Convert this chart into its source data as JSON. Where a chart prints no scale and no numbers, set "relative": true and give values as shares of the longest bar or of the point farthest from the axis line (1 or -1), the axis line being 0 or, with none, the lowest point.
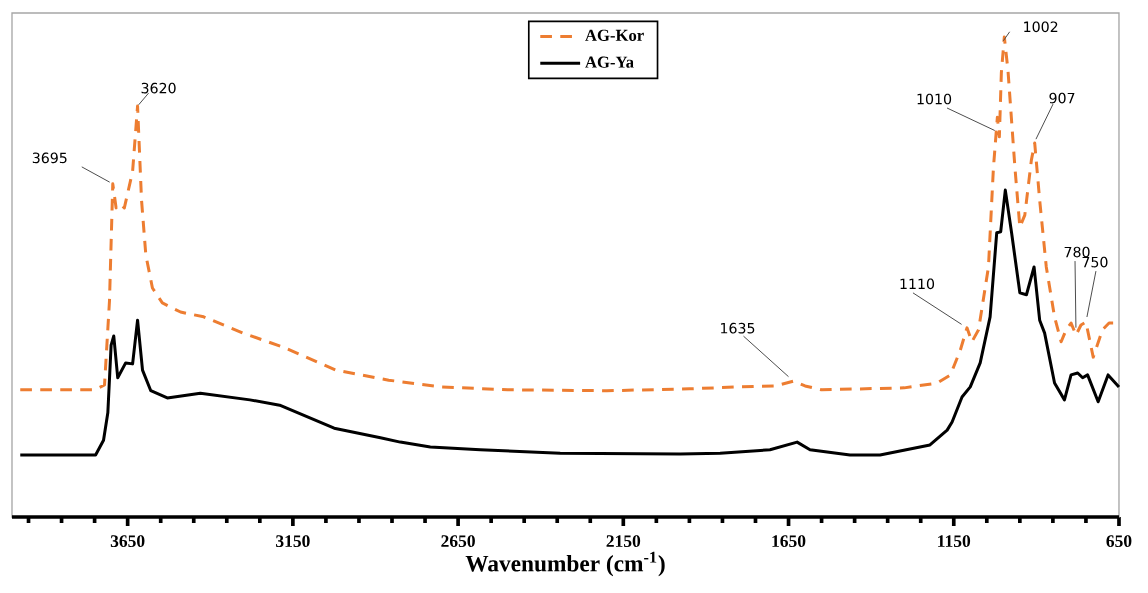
{
  "chart_data": {
    "type": "line",
    "relative": true,
    "xlabel": "Wavenumber (cm$^{-1}$)",
    "xlim": [
      4000,
      650
    ],
    "xticks": [
      {
        "value": 3950,
        "label": null
      },
      {
        "value": 3850,
        "label": null
      },
      {
        "value": 3750,
        "label": null
      },
      3650,
      {
        "value": 3550,
        "label": null
      },
      {
        "value": 3450,
        "label": null
      },
      {
        "value": 3350,
        "label": null
      },
      {
        "value": 3250,
        "label": null
      },
      3150,
      {
        "value": 3050,
        "label": null
      },
      {
        "value": 2950,
        "label": null
      },
      {
        "value": 2850,
        "label": null
      },
      {
        "value": 2750,
        "label": null
      },
      2650,
      {
        "value": 2550,
        "label": null
      },
      {
        "value": 2450,
        "label": null
      },
      {
        "value": 2350,
        "label": null
      },
      {
        "value": 2250,
        "label": null
      },
      2150,
      {
        "value": 2050,
        "label": null
      },
      {
        "value": 1950,
        "label": null
      },
      {
        "value": 1850,
        "label": null
      },
      {
        "value": 1750,
        "label": null
      },
      1650,
      {
        "value": 1550,
        "label": null
      },
      {
        "value": 1450,
        "label": null
      },
      {
        "value": 1350,
        "label": null
      },
      {
        "value": 1250,
        "label": null
      },
      1150,
      {
        "value": 1050,
        "label": null
      },
      {
        "value": 950,
        "label": null
      },
      {
        "value": 850,
        "label": null
      },
      {
        "value": 750,
        "label": null
      },
      650
    ],
    "legend": "top",
    "series": [
      {
        "name": "AG-Kor",
        "color": "#ed7d31",
        "line_style": "dashed",
        "x": [
          3975,
          3750,
          3720,
          3705,
          3695,
          3685,
          3672,
          3660,
          3635,
          3620,
          3608,
          3595,
          3575,
          3545,
          3490,
          3420,
          3300,
          3180,
          3020,
          2860,
          2700,
          2500,
          2200,
          1950,
          1800,
          1690,
          1635,
          1600,
          1550,
          1300,
          1200,
          1160,
          1130,
          1110,
          1095,
          1075,
          1045,
          1030,
          1018,
          1012,
          1006,
          997,
          986,
          965,
          950,
          935,
          915,
          905,
          890,
          870,
          845,
          825,
          810,
          795,
          780,
          765,
          750,
          728,
          700,
          680,
          650
        ],
        "values": [
          0.265,
          0.265,
          0.275,
          0.45,
          0.694,
          0.644,
          0.652,
          0.644,
          0.72,
          0.856,
          0.66,
          0.546,
          0.477,
          0.446,
          0.427,
          0.417,
          0.383,
          0.354,
          0.306,
          0.285,
          0.271,
          0.265,
          0.263,
          0.267,
          0.271,
          0.273,
          0.283,
          0.273,
          0.265,
          0.269,
          0.279,
          0.296,
          0.348,
          0.394,
          0.365,
          0.39,
          0.521,
          0.727,
          0.833,
          0.792,
          0.925,
          1.0,
          0.931,
          0.729,
          0.604,
          0.629,
          0.744,
          0.779,
          0.66,
          0.521,
          0.417,
          0.365,
          0.39,
          0.404,
          0.379,
          0.4,
          0.406,
          0.333,
          0.39,
          0.404,
          0.404
        ]
      },
      {
        "name": "AG-Ya",
        "color": "#000000",
        "line_style": "solid",
        "x": [
          3975,
          3747,
          3723,
          3710,
          3700,
          3692,
          3680,
          3656,
          3635,
          3620,
          3605,
          3580,
          3530,
          3430,
          3280,
          3190,
          3025,
          2885,
          2825,
          2734,
          2583,
          2341,
          1978,
          1857,
          1706,
          1624,
          1585,
          1464,
          1373,
          1222,
          1170,
          1155,
          1125,
          1100,
          1070,
          1040,
          1020,
          1008,
          994,
          975,
          950,
          930,
          907,
          890,
          875,
          845,
          815,
          795,
          775,
          760,
          745,
          713,
          683,
          650
        ],
        "values": [
          0.129,
          0.129,
          0.16,
          0.217,
          0.358,
          0.377,
          0.29,
          0.321,
          0.319,
          0.41,
          0.306,
          0.263,
          0.248,
          0.258,
          0.244,
          0.233,
          0.185,
          0.165,
          0.156,
          0.146,
          0.14,
          0.133,
          0.131,
          0.133,
          0.14,
          0.156,
          0.14,
          0.129,
          0.129,
          0.15,
          0.181,
          0.198,
          0.25,
          0.271,
          0.321,
          0.417,
          0.592,
          0.594,
          0.681,
          0.592,
          0.467,
          0.463,
          0.521,
          0.41,
          0.383,
          0.279,
          0.244,
          0.296,
          0.3,
          0.29,
          0.296,
          0.24,
          0.296,
          0.271
        ]
      }
    ],
    "annotations": [
      {
        "text": "3695",
        "x": 3695,
        "y": 0.694
      },
      {
        "text": "3620",
        "x": 3620,
        "y": 0.856
      },
      {
        "text": "1635",
        "x": 1635,
        "y": 0.283
      },
      {
        "text": "1110",
        "x": 1110,
        "y": 0.394
      },
      {
        "text": "1010",
        "x": 1010,
        "y": 0.8
      },
      {
        "text": "1002",
        "x": 1002,
        "y": 0.99
      },
      {
        "text": "907",
        "x": 907,
        "y": 0.779
      },
      {
        "text": "780",
        "x": 780,
        "y": 0.379
      },
      {
        "text": "750",
        "x": 750,
        "y": 0.406
      }
    ]
  }
}
